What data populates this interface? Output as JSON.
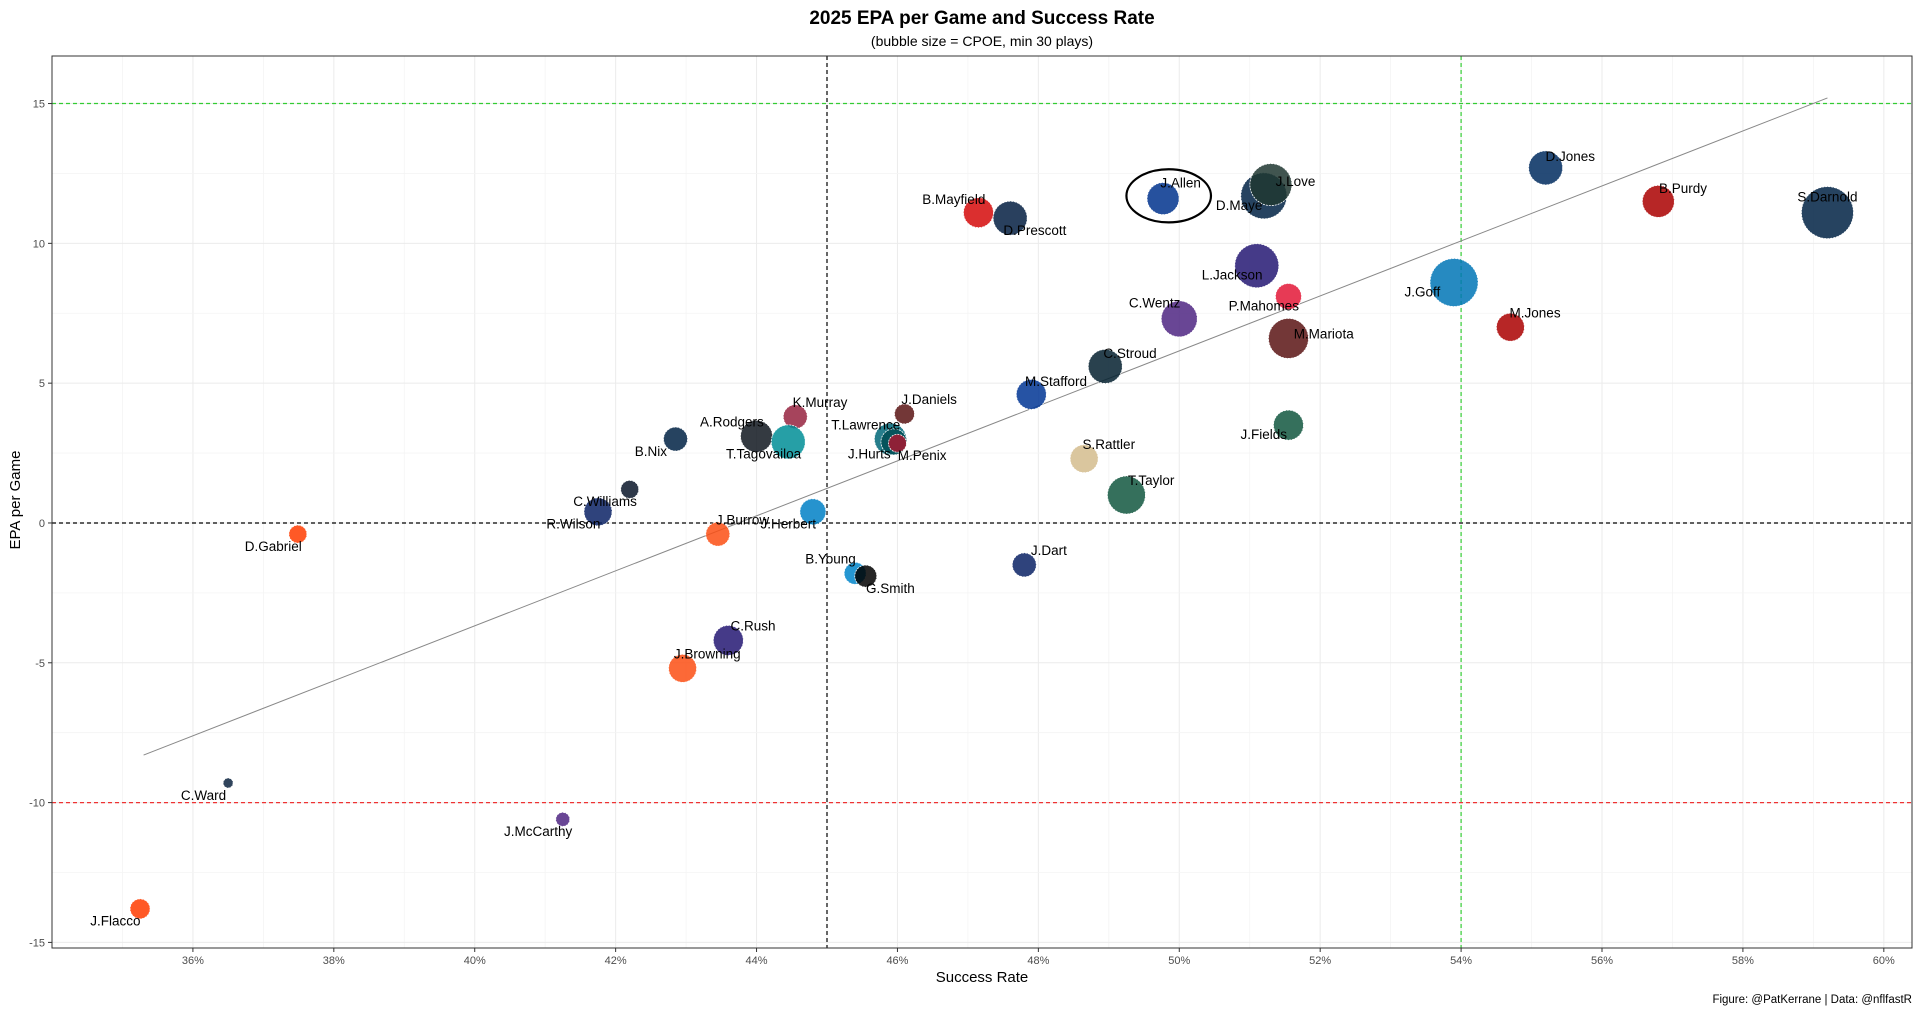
{
  "chart_data": {
    "type": "scatter",
    "title": "2025 EPA per Game and Success Rate",
    "subtitle": "(bubble size = CPOE, min 30 plays)",
    "xlabel": "Success Rate",
    "ylabel": "EPA per Game",
    "caption": "Figure: @PatKerrane | Data: @nflfastR",
    "xlim": [
      0.34,
      0.604
    ],
    "ylim": [
      -15.2,
      16.7
    ],
    "x_ticks": [
      0.36,
      0.38,
      0.4,
      0.42,
      0.44,
      0.46,
      0.48,
      0.5,
      0.52,
      0.54,
      0.56,
      0.58,
      0.6
    ],
    "x_tick_labels": [
      "36%",
      "38%",
      "40%",
      "42%",
      "44%",
      "46%",
      "48%",
      "50%",
      "52%",
      "54%",
      "56%",
      "58%",
      "60%"
    ],
    "y_ticks": [
      -15,
      -10,
      -5,
      0,
      5,
      10,
      15
    ],
    "y_tick_labels": [
      "-15",
      "-10",
      "-5",
      "0",
      "5",
      "10",
      "15"
    ],
    "grid": true,
    "reference_lines": [
      {
        "axis": "x",
        "value": 0.45,
        "color": "#000000",
        "style": "dashed"
      },
      {
        "axis": "x",
        "value": 0.54,
        "color": "#33cc33",
        "style": "dashed"
      },
      {
        "axis": "y",
        "value": 0,
        "color": "#000000",
        "style": "dashed"
      },
      {
        "axis": "y",
        "value": 15,
        "color": "#33cc33",
        "style": "dashed"
      },
      {
        "axis": "y",
        "value": -10,
        "color": "#ee3333",
        "style": "dashed"
      }
    ],
    "trend_line": {
      "x": [
        0.353,
        0.592
      ],
      "y": [
        -8.3,
        15.2
      ],
      "color": "#888888"
    },
    "highlight": {
      "x": 0.4985,
      "y": 11.7,
      "rx": 0.006,
      "ry": 0.95,
      "player": "J.Allen"
    },
    "points": [
      {
        "player": "S.Darnold",
        "x": 0.592,
        "y": 11.1,
        "size": 26,
        "color": "#002244",
        "label_dx": 0.0,
        "label_dy": 0.4
      },
      {
        "player": "J.Goff",
        "x": 0.539,
        "y": 8.6,
        "size": 24,
        "color": "#0076B6",
        "label_dx": -0.0045,
        "label_dy": -0.5
      },
      {
        "player": "D.Maye",
        "x": 0.512,
        "y": 11.7,
        "size": 23,
        "color": "#002244",
        "label_dx": -0.0035,
        "label_dy": -0.5
      },
      {
        "player": "L.Jackson",
        "x": 0.511,
        "y": 9.2,
        "size": 22,
        "color": "#241773",
        "label_dx": -0.0035,
        "label_dy": -0.5
      },
      {
        "player": "J.Love",
        "x": 0.513,
        "y": 12.1,
        "size": 21,
        "color": "#203731",
        "label_dx": 0.0035,
        "label_dy": -0.05
      },
      {
        "player": "M.Mariota",
        "x": 0.5155,
        "y": 6.6,
        "size": 20,
        "color": "#5A1414",
        "label_dx": 0.005,
        "label_dy": 0.0
      },
      {
        "player": "B.Mayfield",
        "x": 0.4715,
        "y": 11.1,
        "size": 15,
        "color": "#D50A0A",
        "label_dx": -0.0035,
        "label_dy": 0.3
      },
      {
        "player": "D.Prescott",
        "x": 0.476,
        "y": 10.9,
        "size": 17,
        "color": "#041E42",
        "label_dx": 0.0035,
        "label_dy": -0.6
      },
      {
        "player": "D.Jones",
        "x": 0.552,
        "y": 12.7,
        "size": 17,
        "color": "#002C5F",
        "label_dx": 0.0035,
        "label_dy": 0.25
      },
      {
        "player": "B.Purdy",
        "x": 0.568,
        "y": 11.5,
        "size": 16,
        "color": "#AA0000",
        "label_dx": 0.0035,
        "label_dy": 0.3
      },
      {
        "player": "J.Allen",
        "x": 0.4977,
        "y": 11.6,
        "size": 16,
        "color": "#00338D",
        "label_dx": 0.0025,
        "label_dy": 0.4
      },
      {
        "player": "C.Wentz",
        "x": 0.5,
        "y": 7.3,
        "size": 18,
        "color": "#4F2683",
        "label_dx": -0.0035,
        "label_dy": 0.4
      },
      {
        "player": "P.Mahomes",
        "x": 0.5155,
        "y": 8.1,
        "size": 13,
        "color": "#E31837",
        "label_dx": -0.0035,
        "label_dy": -0.5
      },
      {
        "player": "M.Jones",
        "x": 0.547,
        "y": 7.0,
        "size": 14,
        "color": "#AA0000",
        "label_dx": 0.0035,
        "label_dy": 0.35
      },
      {
        "player": "C.Stroud",
        "x": 0.4895,
        "y": 5.6,
        "size": 17,
        "color": "#03202F",
        "label_dx": 0.0035,
        "label_dy": 0.3
      },
      {
        "player": "M.Stafford",
        "x": 0.479,
        "y": 4.6,
        "size": 15,
        "color": "#003594",
        "label_dx": 0.0035,
        "label_dy": 0.3
      },
      {
        "player": "J.Fields",
        "x": 0.5155,
        "y": 3.5,
        "size": 15,
        "color": "#125740",
        "label_dx": -0.0035,
        "label_dy": -0.5
      },
      {
        "player": "S.Rattler",
        "x": 0.4865,
        "y": 2.3,
        "size": 14,
        "color": "#D3BC8D",
        "label_dx": 0.0035,
        "label_dy": 0.35
      },
      {
        "player": "T.Taylor",
        "x": 0.4925,
        "y": 1.0,
        "size": 19,
        "color": "#125740",
        "label_dx": 0.0035,
        "label_dy": 0.35
      },
      {
        "player": "J.Dart",
        "x": 0.478,
        "y": -1.5,
        "size": 12,
        "color": "#0B2265",
        "label_dx": 0.0035,
        "label_dy": 0.35
      },
      {
        "player": "J.Daniels",
        "x": 0.461,
        "y": 3.9,
        "size": 10,
        "color": "#5A1414",
        "label_dx": 0.0035,
        "label_dy": 0.35
      },
      {
        "player": "T.Lawrence",
        "x": 0.459,
        "y": 3.0,
        "size": 16,
        "color": "#006778",
        "label_dx": -0.0035,
        "label_dy": 0.35
      },
      {
        "player": "J.Hurts",
        "x": 0.4595,
        "y": 2.9,
        "size": 13,
        "color": "#004C54",
        "label_dx": -0.0035,
        "label_dy": -0.6
      },
      {
        "player": "M.Penix",
        "x": 0.46,
        "y": 2.85,
        "size": 9,
        "color": "#A71930",
        "label_dx": 0.0035,
        "label_dy": -0.6
      },
      {
        "player": "K.Murray",
        "x": 0.4455,
        "y": 3.8,
        "size": 12,
        "color": "#97233F",
        "label_dx": 0.0035,
        "label_dy": 0.35
      },
      {
        "player": "A.Rodgers",
        "x": 0.44,
        "y": 3.1,
        "size": 16,
        "color": "#101820",
        "label_dx": -0.0035,
        "label_dy": 0.35
      },
      {
        "player": "T.Tagovailoa",
        "x": 0.4445,
        "y": 2.9,
        "size": 17,
        "color": "#008E97",
        "label_dx": -0.0035,
        "label_dy": -0.6
      },
      {
        "player": "B.Nix",
        "x": 0.4285,
        "y": 3.0,
        "size": 12,
        "color": "#002244",
        "label_dx": -0.0035,
        "label_dy": -0.6
      },
      {
        "player": "C.Williams",
        "x": 0.422,
        "y": 1.2,
        "size": 9,
        "color": "#0B162A",
        "label_dx": -0.0035,
        "label_dy": -0.6
      },
      {
        "player": "R.Wilson",
        "x": 0.4175,
        "y": 0.4,
        "size": 14,
        "color": "#0B2265",
        "label_dx": -0.0035,
        "label_dy": -0.6
      },
      {
        "player": "D.Gabriel",
        "x": 0.3749,
        "y": -0.4,
        "size": 9,
        "color": "#FF3C00",
        "label_dx": -0.0035,
        "label_dy": -0.6
      },
      {
        "player": "J.Burrow",
        "x": 0.4345,
        "y": -0.4,
        "size": 12,
        "color": "#FB4F14",
        "label_dx": 0.0035,
        "label_dy": 0.35
      },
      {
        "player": "J.Herbert",
        "x": 0.448,
        "y": 0.4,
        "size": 13,
        "color": "#0080C6",
        "label_dx": -0.0035,
        "label_dy": -0.6
      },
      {
        "player": "B.Young",
        "x": 0.454,
        "y": -1.8,
        "size": 11,
        "color": "#0085CA",
        "label_dx": -0.0035,
        "label_dy": 0.35
      },
      {
        "player": "G.Smith",
        "x": 0.4555,
        "y": -1.9,
        "size": 11,
        "color": "#000000",
        "label_dx": 0.0035,
        "label_dy": -0.6
      },
      {
        "player": "C.Rush",
        "x": 0.436,
        "y": -4.2,
        "size": 15,
        "color": "#241773",
        "label_dx": 0.0035,
        "label_dy": 0.35
      },
      {
        "player": "J.Browning",
        "x": 0.4295,
        "y": -5.2,
        "size": 14,
        "color": "#FB4F14",
        "label_dx": 0.0035,
        "label_dy": 0.35
      },
      {
        "player": "C.Ward",
        "x": 0.365,
        "y": -9.3,
        "size": 5,
        "color": "#0C2340",
        "label_dx": -0.0035,
        "label_dy": -0.6
      },
      {
        "player": "J.McCarthy",
        "x": 0.4125,
        "y": -10.6,
        "size": 7,
        "color": "#4F2683",
        "label_dx": -0.0035,
        "label_dy": -0.6
      },
      {
        "player": "J.Flacco",
        "x": 0.3525,
        "y": -13.8,
        "size": 10,
        "color": "#FF3C00",
        "label_dx": -0.0035,
        "label_dy": -0.6
      }
    ]
  }
}
